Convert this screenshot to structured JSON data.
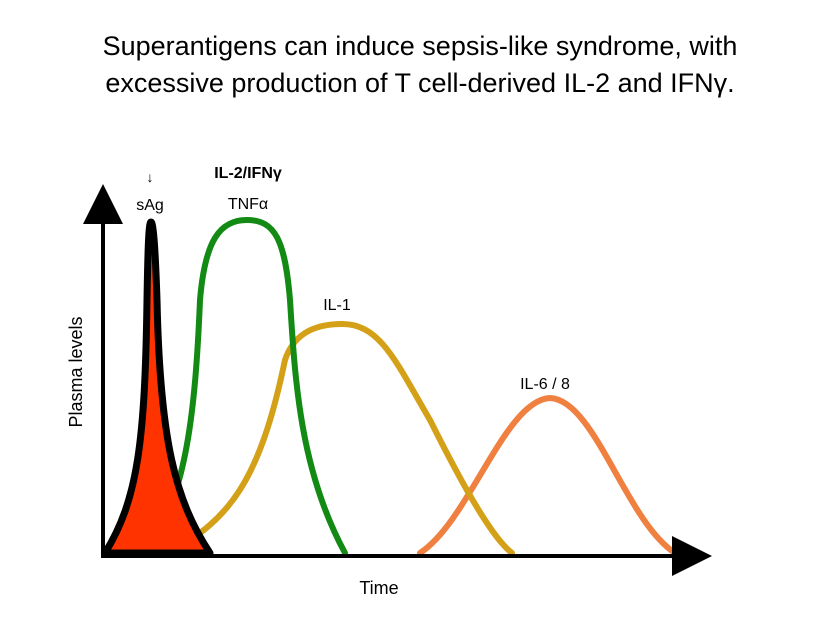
{
  "title": {
    "line1": "Superantigens can induce sepsis-like syndrome, with",
    "line2": "excessive production of T cell-derived IL-2 and IFNγ."
  },
  "diagram": {
    "y_axis_label": "Plasma levels",
    "x_axis_label": "Time",
    "marker_arrow": "↓",
    "bold_label": "IL-2/IFNγ",
    "curves": [
      {
        "name": "sAg",
        "color": "#000000",
        "fill": "#ff3300"
      },
      {
        "name": "TNFα",
        "color": "#138a13"
      },
      {
        "name": "IL-1",
        "color": "#d4a017"
      },
      {
        "name": "IL-6 / 8",
        "color": "#f08040"
      }
    ]
  }
}
